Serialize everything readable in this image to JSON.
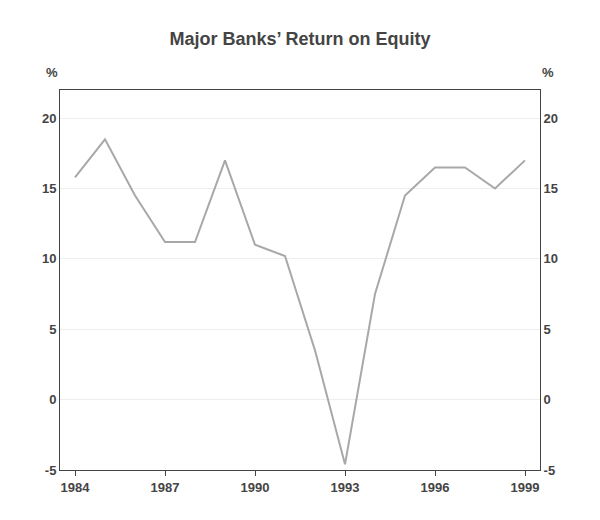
{
  "chart_data": {
    "type": "line",
    "title": "Major Banks’ Return on Equity",
    "x": [
      1984,
      1985,
      1986,
      1987,
      1988,
      1989,
      1990,
      1991,
      1992,
      1993,
      1994,
      1995,
      1996,
      1997,
      1998,
      1999
    ],
    "values": [
      15.8,
      18.5,
      14.5,
      11.2,
      11.2,
      17.0,
      11.0,
      10.2,
      3.5,
      -4.6,
      7.5,
      14.5,
      16.5,
      16.5,
      15.0,
      17.0
    ],
    "color": "#a8a8a8",
    "xlim": [
      1983.5,
      1999.5
    ],
    "xticks": [
      1984,
      1987,
      1990,
      1993,
      1996,
      1999
    ],
    "ylim": [
      -5,
      22
    ],
    "yticks": [
      -5,
      0,
      5,
      10,
      15,
      20
    ],
    "y2lim": [
      -5,
      22
    ],
    "y2ticks": [
      -5,
      0,
      5,
      10,
      15,
      20
    ],
    "ylabel": "%",
    "y2label": "%",
    "grid": "y"
  }
}
